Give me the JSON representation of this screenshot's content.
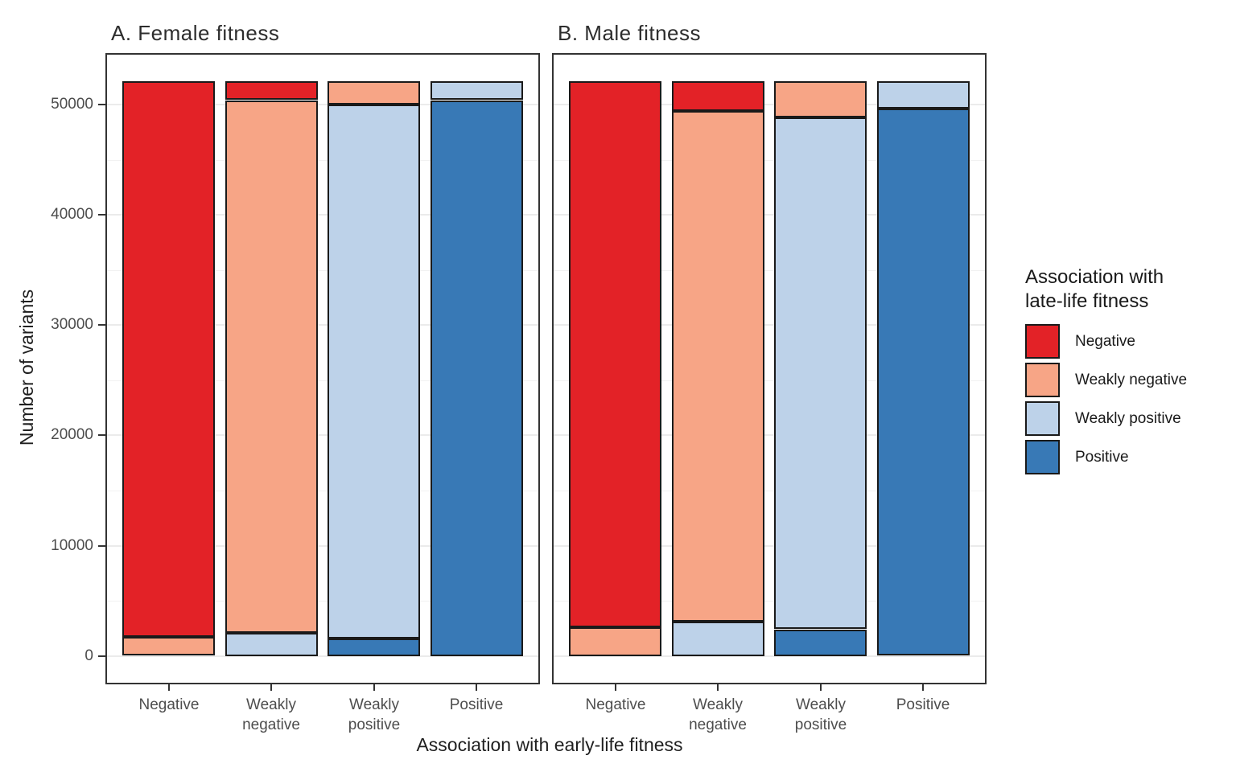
{
  "chart_data": {
    "type": "bar",
    "stacked": true,
    "grid": true,
    "panels": [
      {
        "id": "A",
        "title": "A. Female fitness",
        "bars": [
          {
            "category": "Negative",
            "segments": {
              "Negative": 50400,
              "Weakly negative": 1700,
              "Weakly positive": 0,
              "Positive": 0
            }
          },
          {
            "category": "Weakly negative",
            "segments": {
              "Negative": 1700,
              "Weakly negative": 48300,
              "Weakly positive": 2100,
              "Positive": 0
            }
          },
          {
            "category": "Weakly positive",
            "segments": {
              "Negative": 0,
              "Weakly negative": 2100,
              "Weakly positive": 48400,
              "Positive": 1600
            }
          },
          {
            "category": "Positive",
            "segments": {
              "Negative": 0,
              "Weakly negative": 0,
              "Weakly positive": 1700,
              "Positive": 50400
            }
          }
        ]
      },
      {
        "id": "B",
        "title": "B. Male fitness",
        "bars": [
          {
            "category": "Negative",
            "segments": {
              "Negative": 49500,
              "Weakly negative": 2600,
              "Weakly positive": 0,
              "Positive": 0
            }
          },
          {
            "category": "Weakly negative",
            "segments": {
              "Negative": 2700,
              "Weakly negative": 46300,
              "Weakly positive": 3100,
              "Positive": 0
            }
          },
          {
            "category": "Weakly positive",
            "segments": {
              "Negative": 0,
              "Weakly negative": 3300,
              "Weakly positive": 46400,
              "Positive": 2400
            }
          },
          {
            "category": "Positive",
            "segments": {
              "Negative": 0,
              "Weakly negative": 0,
              "Weakly positive": 2500,
              "Positive": 49600
            }
          }
        ]
      }
    ],
    "categories": [
      {
        "name": "Negative",
        "label_lines": [
          "Negative"
        ]
      },
      {
        "name": "Weakly negative",
        "label_lines": [
          "Weakly",
          "negative"
        ]
      },
      {
        "name": "Weakly positive",
        "label_lines": [
          "Weakly",
          "positive"
        ]
      },
      {
        "name": "Positive",
        "label_lines": [
          "Positive"
        ]
      }
    ],
    "stack_order_top_to_bottom": [
      "Negative",
      "Weakly negative",
      "Weakly positive",
      "Positive"
    ],
    "colors": {
      "Negative": "#e32227",
      "Weakly negative": "#f7a586",
      "Weakly positive": "#bdd2e9",
      "Positive": "#3879b6"
    },
    "outline_color": "#1a1a1a",
    "x_axis": {
      "label": "Association with early-life fitness"
    },
    "y_axis": {
      "label": "Number of variants",
      "major_ticks": [
        0,
        10000,
        20000,
        30000,
        40000,
        50000
      ],
      "minor_ticks": [
        5000,
        15000,
        25000,
        35000,
        45000
      ],
      "min": -2430,
      "max": 54520
    },
    "legend": {
      "title_lines": [
        "Association with",
        "late-life fitness"
      ],
      "position": "right",
      "items": [
        {
          "label": "Negative",
          "color": "#e32227"
        },
        {
          "label": "Weakly negative",
          "color": "#f7a586"
        },
        {
          "label": "Weakly positive",
          "color": "#bdd2e9"
        },
        {
          "label": "Positive",
          "color": "#3879b6"
        }
      ]
    }
  }
}
